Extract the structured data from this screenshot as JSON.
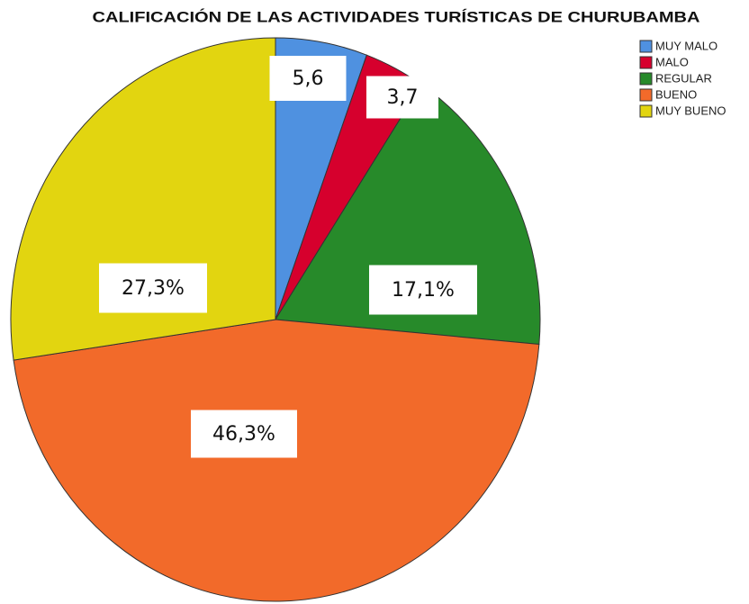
{
  "chart_data": {
    "type": "pie",
    "title": "CALIFICACIÓN DE LAS ACTIVIDADES TURÍSTICAS DE CHURUBAMBA",
    "categories": [
      "MUY MALO",
      "MALO",
      "REGULAR",
      "BUENO",
      "MUY BUENO"
    ],
    "values": [
      5.6,
      3.7,
      17.1,
      46.3,
      27.3
    ],
    "value_labels": [
      "5,6",
      "3,7",
      "17,1%",
      "46,3%",
      "27,3%"
    ],
    "colors": [
      "#4f91e0",
      "#d6002d",
      "#278a2a",
      "#f26a2a",
      "#e2d510"
    ],
    "legend": "top-right"
  }
}
